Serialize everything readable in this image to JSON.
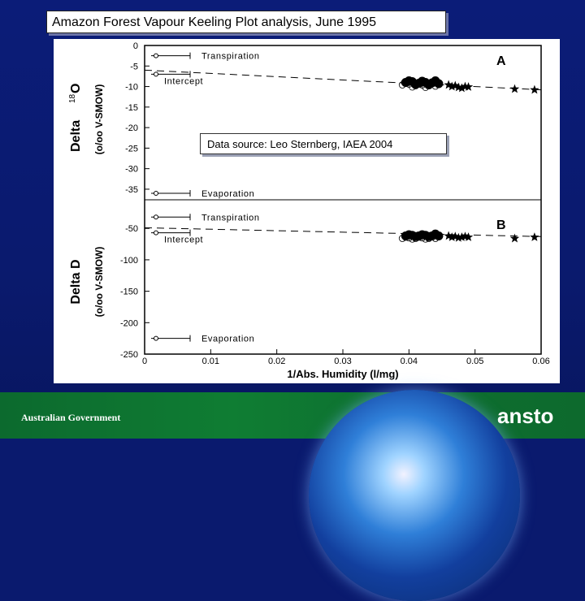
{
  "slide": {
    "title": "Amazon Forest Vapour Keeling Plot analysis, June 1995",
    "source_note": "Data source: Leo Sternberg, IAEA 2004",
    "footer_left": "Australian Government",
    "logo_text": "ansto",
    "colors": {
      "background": "#0a1a6e",
      "footer": "#0f7d33",
      "chart_bg": "#ffffff"
    }
  },
  "chart_data": [
    {
      "type": "scatter",
      "panel_label": "A",
      "ylabel_main": "Delta",
      "ylabel_sup": "18",
      "ylabel_tail": "O",
      "ylabel_unit": "(o/oo V-SMOW)",
      "ylim": [
        -36,
        0
      ],
      "yticks": [
        0,
        -5,
        -10,
        -15,
        -20,
        -25,
        -30,
        -35
      ],
      "yticklabels": [
        "0",
        "-5",
        "-10",
        "-15",
        "-20",
        "-25",
        "-30",
        "-35"
      ],
      "annotations": [
        {
          "text": "Transpiration",
          "y": -2.5
        },
        {
          "text": "Intercept",
          "y": -7
        },
        {
          "text": "Evaporation",
          "y": -36
        }
      ],
      "series": [
        {
          "marker": "circle",
          "x": [
            0.0395,
            0.04,
            0.0405,
            0.041,
            0.0415,
            0.042,
            0.0425,
            0.043,
            0.0435,
            0.044,
            0.0445
          ],
          "y": [
            -9.0,
            -8.6,
            -8.8,
            -9.5,
            -9.2,
            -8.7,
            -9.0,
            -9.6,
            -9.1,
            -8.6,
            -9.3
          ]
        },
        {
          "marker": "star",
          "x": [
            0.046,
            0.0465,
            0.047,
            0.0475,
            0.048,
            0.0485,
            0.049,
            0.056,
            0.059
          ],
          "y": [
            -9.6,
            -10.0,
            -9.8,
            -10.2,
            -10.4,
            -10.0,
            -10.1,
            -10.6,
            -10.8
          ]
        }
      ],
      "fit_line": {
        "x": [
          0,
          0.06
        ],
        "y": [
          -6.0,
          -10.8
        ]
      }
    },
    {
      "type": "scatter",
      "panel_label": "B",
      "ylabel_main": "Delta D",
      "ylabel_unit": "(o/oo V-SMOW)",
      "xlabel": "1/Abs. Humidity  (l/mg)",
      "xlim": [
        0,
        0.06
      ],
      "xticks": [
        0,
        0.01,
        0.02,
        0.03,
        0.04,
        0.05,
        0.06
      ],
      "xticklabels": [
        "0",
        "0.01",
        "0.02",
        "0.03",
        "0.04",
        "0.05",
        "0.06"
      ],
      "ylim": [
        -250,
        -20
      ],
      "yticks": [
        -50,
        -100,
        -150,
        -200,
        -250
      ],
      "yticklabels": [
        "-50",
        "-100",
        "-150",
        "-200",
        "-250"
      ],
      "annotations": [
        {
          "text": "Transpiration",
          "y": -32
        },
        {
          "text": "Intercept",
          "y": -57
        },
        {
          "text": "Evaporation",
          "y": -225
        }
      ],
      "series": [
        {
          "marker": "circle",
          "x": [
            0.0395,
            0.04,
            0.0405,
            0.041,
            0.0415,
            0.042,
            0.0425,
            0.043,
            0.0435,
            0.044,
            0.0445
          ],
          "y": [
            -62,
            -60,
            -61,
            -63,
            -62,
            -60,
            -61,
            -63,
            -62,
            -59,
            -62
          ]
        },
        {
          "marker": "star",
          "x": [
            0.046,
            0.0465,
            0.047,
            0.0475,
            0.048,
            0.0485,
            0.049,
            0.056,
            0.059
          ],
          "y": [
            -62,
            -64,
            -63,
            -65,
            -64,
            -63,
            -64,
            -66,
            -64
          ]
        }
      ],
      "fit_line": {
        "x": [
          0,
          0.06
        ],
        "y": [
          -49,
          -63
        ]
      }
    }
  ]
}
